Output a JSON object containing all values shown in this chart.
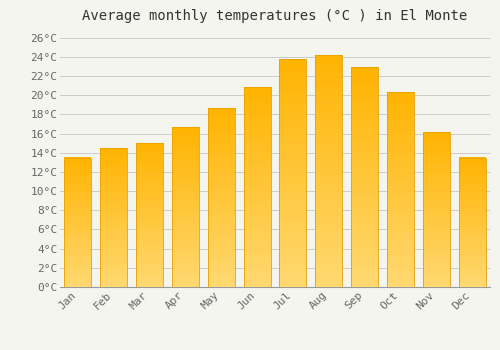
{
  "title": "Average monthly temperatures (°C ) in El Monte",
  "months": [
    "Jan",
    "Feb",
    "Mar",
    "Apr",
    "May",
    "Jun",
    "Jul",
    "Aug",
    "Sep",
    "Oct",
    "Nov",
    "Dec"
  ],
  "values": [
    13.5,
    14.5,
    15.0,
    16.7,
    18.7,
    20.8,
    23.8,
    24.2,
    22.9,
    20.3,
    16.2,
    13.5
  ],
  "bar_color_top": "#FFB300",
  "bar_color_bottom": "#FFD870",
  "bar_edge_color": "#E8A000",
  "background_color": "#F5F5F0",
  "plot_bg_color": "#F5F5F0",
  "grid_color": "#CCCCCC",
  "text_color": "#666666",
  "title_color": "#333333",
  "ylim": [
    0,
    27
  ],
  "yticks": [
    0,
    2,
    4,
    6,
    8,
    10,
    12,
    14,
    16,
    18,
    20,
    22,
    24,
    26
  ],
  "title_fontsize": 10,
  "tick_fontsize": 8,
  "font_family": "monospace",
  "bar_width": 0.75
}
